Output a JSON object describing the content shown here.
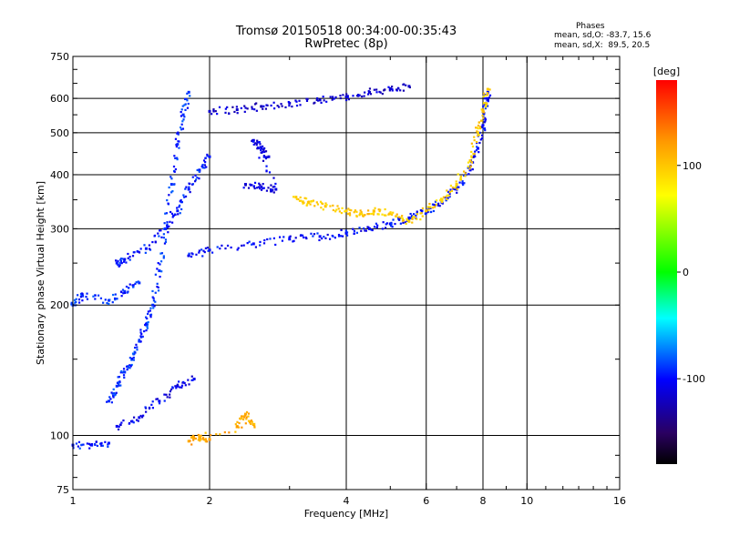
{
  "header": {
    "title_line1": "Tromsø 20150518 00:34:00-00:35:43",
    "title_line2": "RwPretec (8p)"
  },
  "phase_info": {
    "title": "Phases",
    "o_stats": "mean, sd,O: -83.7, 15.6",
    "x_stats": "mean, sd,X:  89.5, 20.5"
  },
  "colorbar": {
    "label": "[deg]",
    "ticks": [
      {
        "value": 100,
        "label": "100"
      },
      {
        "value": 0,
        "label": "0"
      },
      {
        "value": -100,
        "label": "-100"
      }
    ],
    "range": [
      -180,
      180
    ]
  },
  "chart_data": {
    "type": "scatter",
    "xlabel": "Frequency [MHz]",
    "ylabel": "Stationary phase Virtual Height [km]",
    "xscale": "log",
    "yscale": "log",
    "xlim": [
      1,
      16
    ],
    "ylim": [
      75,
      750
    ],
    "xticks": [
      {
        "v": 1,
        "label": "1"
      },
      {
        "v": 2,
        "label": "2"
      },
      {
        "v": 4,
        "label": "4"
      },
      {
        "v": 6,
        "label": "6"
      },
      {
        "v": 8,
        "label": "8"
      },
      {
        "v": 10,
        "label": "10"
      },
      {
        "v": 16,
        "label": "16"
      }
    ],
    "yticks": [
      {
        "v": 75,
        "label": "75"
      },
      {
        "v": 100,
        "label": "100"
      },
      {
        "v": 200,
        "label": "200"
      },
      {
        "v": 300,
        "label": "300"
      },
      {
        "v": 400,
        "label": "400"
      },
      {
        "v": 500,
        "label": "500"
      },
      {
        "v": 600,
        "label": "600"
      },
      {
        "v": 750,
        "label": "750"
      }
    ],
    "grid_x": [
      2,
      4,
      6,
      8,
      10
    ],
    "grid_y": [
      100,
      200,
      300,
      400,
      500,
      600
    ],
    "grid": true,
    "traces": [
      {
        "phase": -95,
        "points": [
          [
            1.0,
            95
          ],
          [
            1.1,
            95
          ],
          [
            1.2,
            96
          ]
        ]
      },
      {
        "phase": -90,
        "points": [
          [
            1.0,
            200
          ],
          [
            1.05,
            210
          ],
          [
            1.2,
            205
          ],
          [
            1.3,
            215
          ],
          [
            1.4,
            225
          ]
        ]
      },
      {
        "phase": -95,
        "points": [
          [
            1.25,
            250
          ],
          [
            1.3,
            255
          ],
          [
            1.45,
            270
          ],
          [
            1.6,
            300
          ],
          [
            1.7,
            330
          ],
          [
            1.8,
            370
          ],
          [
            1.9,
            410
          ],
          [
            2.0,
            440
          ]
        ]
      },
      {
        "phase": -90,
        "points": [
          [
            1.2,
            120
          ],
          [
            1.25,
            130
          ],
          [
            1.3,
            140
          ],
          [
            1.35,
            150
          ],
          [
            1.4,
            165
          ],
          [
            1.45,
            180
          ],
          [
            1.5,
            200
          ],
          [
            1.55,
            240
          ],
          [
            1.6,
            300
          ],
          [
            1.65,
            380
          ],
          [
            1.7,
            470
          ],
          [
            1.75,
            550
          ],
          [
            1.8,
            620
          ]
        ]
      },
      {
        "phase": -105,
        "points": [
          [
            1.25,
            105
          ],
          [
            1.4,
            110
          ],
          [
            1.55,
            120
          ],
          [
            1.7,
            130
          ],
          [
            1.85,
            135
          ]
        ]
      },
      {
        "phase": -100,
        "points": [
          [
            1.8,
            260
          ],
          [
            2.0,
            268
          ],
          [
            2.5,
            277
          ],
          [
            3.0,
            284
          ],
          [
            3.5,
            288
          ],
          [
            4.0,
            293
          ],
          [
            4.5,
            300
          ],
          [
            5.0,
            308
          ],
          [
            5.5,
            318
          ],
          [
            6.0,
            328
          ],
          [
            6.5,
            345
          ],
          [
            7.0,
            370
          ],
          [
            7.5,
            410
          ],
          [
            7.8,
            460
          ],
          [
            8.0,
            520
          ],
          [
            8.1,
            580
          ],
          [
            8.2,
            620
          ]
        ]
      },
      {
        "phase": -115,
        "points": [
          [
            2.0,
            560
          ],
          [
            2.3,
            565
          ],
          [
            2.6,
            575
          ],
          [
            3.0,
            585
          ],
          [
            3.5,
            595
          ],
          [
            4.0,
            605
          ],
          [
            4.5,
            620
          ],
          [
            5.0,
            632
          ],
          [
            5.5,
            640
          ]
        ]
      },
      {
        "phase": -110,
        "points": [
          [
            2.4,
            380
          ],
          [
            2.6,
            375
          ],
          [
            2.8,
            370
          ],
          [
            2.5,
            480
          ],
          [
            2.6,
            460
          ],
          [
            2.7,
            440
          ]
        ]
      },
      {
        "phase": 95,
        "points": [
          [
            3.1,
            355
          ],
          [
            3.3,
            345
          ],
          [
            3.6,
            338
          ],
          [
            4.0,
            330
          ],
          [
            4.3,
            325
          ],
          [
            4.6,
            330
          ],
          [
            5.0,
            325
          ],
          [
            5.5,
            312
          ],
          [
            6.0,
            330
          ],
          [
            6.5,
            350
          ],
          [
            7.0,
            380
          ],
          [
            7.5,
            430
          ],
          [
            7.8,
            500
          ],
          [
            8.0,
            560
          ],
          [
            8.2,
            630
          ]
        ]
      },
      {
        "phase": 110,
        "points": [
          [
            2.3,
            105
          ],
          [
            2.4,
            112
          ],
          [
            2.5,
            106
          ],
          [
            1.8,
            97
          ],
          [
            1.9,
            99
          ],
          [
            2.0,
            98
          ]
        ]
      }
    ]
  }
}
